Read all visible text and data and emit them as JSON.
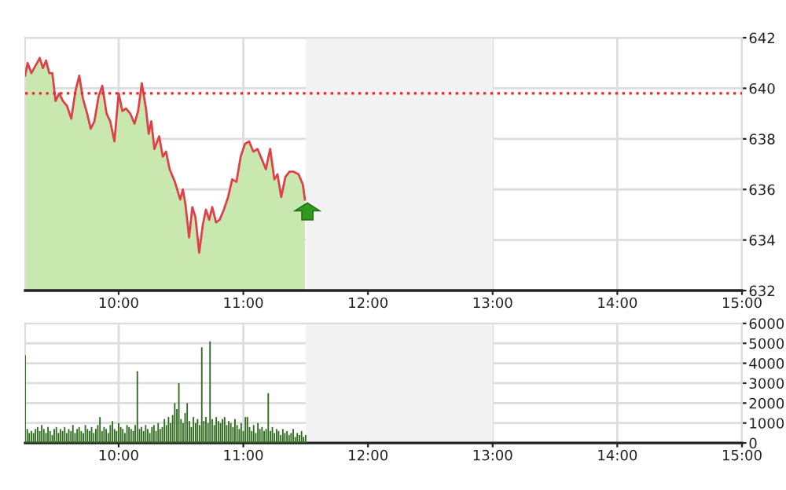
{
  "chart_data": [
    {
      "type": "area",
      "xlim": [
        9.25,
        15
      ],
      "xticks": [
        {
          "value": 10,
          "label": "10:00"
        },
        {
          "value": 11,
          "label": "11:00"
        },
        {
          "value": 12,
          "label": "12:00"
        },
        {
          "value": 13,
          "label": "13:00"
        },
        {
          "value": 14,
          "label": "14:00"
        },
        {
          "value": 15,
          "label": "15:00"
        }
      ],
      "ylim": [
        632,
        642
      ],
      "yticks": [
        632,
        634,
        636,
        638,
        640,
        642
      ],
      "grid": true,
      "legend": false,
      "bands": [
        {
          "axis": "x",
          "from": 11.5,
          "to": 13,
          "color": "#f2f2f2"
        }
      ],
      "ref_lines": [
        {
          "axis": "y",
          "value": 639.8,
          "color": "#e8262b",
          "line_style": "dotted"
        }
      ],
      "series": [
        {
          "type": "area",
          "color": "#c8e8b0",
          "x": [
            9.25,
            9.27,
            9.3,
            9.367,
            9.392,
            9.418,
            9.443,
            9.468,
            9.494,
            9.523,
            9.553,
            9.586,
            9.62,
            9.654,
            9.684,
            9.713,
            9.747,
            9.776,
            9.806,
            9.84,
            9.869,
            9.903,
            9.932,
            9.966,
            10.0,
            10.03,
            10.059,
            10.093,
            10.127,
            10.156,
            10.186,
            10.219,
            10.241,
            10.262,
            10.287,
            10.325,
            10.354,
            10.38,
            10.409,
            10.451,
            10.494,
            10.515,
            10.536,
            10.565,
            10.591,
            10.616,
            10.646,
            10.675,
            10.7,
            10.726,
            10.751,
            10.781,
            10.81,
            10.844,
            10.878,
            10.911,
            10.945,
            10.979,
            11.013,
            11.046,
            11.08,
            11.114,
            11.148,
            11.181,
            11.215,
            11.249,
            11.274,
            11.304,
            11.338,
            11.371,
            11.405,
            11.443,
            11.477,
            11.494
          ],
          "values": [
            640.5,
            641.0,
            640.6,
            641.2,
            640.8,
            641.1,
            640.6,
            640.6,
            639.5,
            639.8,
            639.5,
            639.3,
            638.8,
            639.9,
            640.5,
            639.6,
            639.0,
            638.4,
            638.7,
            639.7,
            640.1,
            639.0,
            638.7,
            637.9,
            639.8,
            639.1,
            639.2,
            639.0,
            638.6,
            639.1,
            640.2,
            639.2,
            638.2,
            638.7,
            637.6,
            638.1,
            637.3,
            637.5,
            636.8,
            636.3,
            635.6,
            636.0,
            635.4,
            634.1,
            635.3,
            634.9,
            633.5,
            634.6,
            635.2,
            634.8,
            635.3,
            634.7,
            634.8,
            635.2,
            635.7,
            636.4,
            636.3,
            637.3,
            637.8,
            637.9,
            637.5,
            637.6,
            637.2,
            636.8,
            637.6,
            636.4,
            636.6,
            635.7,
            636.5,
            636.7,
            636.7,
            636.6,
            636.2,
            635.6
          ]
        },
        {
          "type": "line",
          "color": "#e0404a",
          "x": [
            9.25,
            9.27,
            9.3,
            9.367,
            9.392,
            9.418,
            9.443,
            9.468,
            9.494,
            9.523,
            9.553,
            9.586,
            9.62,
            9.654,
            9.684,
            9.713,
            9.747,
            9.776,
            9.806,
            9.84,
            9.869,
            9.903,
            9.932,
            9.966,
            10.0,
            10.03,
            10.059,
            10.093,
            10.127,
            10.156,
            10.186,
            10.219,
            10.241,
            10.262,
            10.287,
            10.325,
            10.354,
            10.38,
            10.409,
            10.451,
            10.494,
            10.515,
            10.536,
            10.565,
            10.591,
            10.616,
            10.646,
            10.675,
            10.7,
            10.726,
            10.751,
            10.781,
            10.81,
            10.844,
            10.878,
            10.911,
            10.945,
            10.979,
            11.013,
            11.046,
            11.08,
            11.114,
            11.148,
            11.181,
            11.215,
            11.249,
            11.274,
            11.304,
            11.338,
            11.371,
            11.405,
            11.443,
            11.477,
            11.494
          ],
          "values": [
            640.5,
            641.0,
            640.6,
            641.2,
            640.8,
            641.1,
            640.6,
            640.6,
            639.5,
            639.8,
            639.5,
            639.3,
            638.8,
            639.9,
            640.5,
            639.6,
            639.0,
            638.4,
            638.7,
            639.7,
            640.1,
            639.0,
            638.7,
            637.9,
            639.8,
            639.1,
            639.2,
            639.0,
            638.6,
            639.1,
            640.2,
            639.2,
            638.2,
            638.7,
            637.6,
            638.1,
            637.3,
            637.5,
            636.8,
            636.3,
            635.6,
            636.0,
            635.4,
            634.1,
            635.3,
            634.9,
            633.5,
            634.6,
            635.2,
            634.8,
            635.3,
            634.7,
            634.8,
            635.2,
            635.7,
            636.4,
            636.3,
            637.3,
            637.8,
            637.9,
            637.5,
            637.6,
            637.2,
            636.8,
            637.6,
            636.4,
            636.6,
            635.7,
            636.5,
            636.7,
            636.7,
            636.6,
            636.2,
            635.6
          ]
        }
      ]
    },
    {
      "type": "bar",
      "xlim": [
        9.25,
        15
      ],
      "xticks": [
        {
          "value": 10,
          "label": "10:00"
        },
        {
          "value": 11,
          "label": "11:00"
        },
        {
          "value": 12,
          "label": "12:00"
        },
        {
          "value": 13,
          "label": "13:00"
        },
        {
          "value": 14,
          "label": "14:00"
        },
        {
          "value": 15,
          "label": "15:00"
        }
      ],
      "ylim": [
        0,
        6000
      ],
      "yticks": [
        0,
        1000,
        2000,
        3000,
        4000,
        5000,
        6000
      ],
      "grid": true,
      "legend": false,
      "bands": [
        {
          "axis": "x",
          "from": 11.5,
          "to": 13,
          "color": "#f2f2f2"
        }
      ],
      "series": [
        {
          "color": "#2e6b1e",
          "x": [
            9.25,
            9.267,
            9.283,
            9.3,
            9.317,
            9.333,
            9.35,
            9.367,
            9.383,
            9.4,
            9.417,
            9.433,
            9.45,
            9.467,
            9.483,
            9.5,
            9.517,
            9.533,
            9.55,
            9.567,
            9.583,
            9.6,
            9.617,
            9.633,
            9.65,
            9.667,
            9.683,
            9.7,
            9.717,
            9.733,
            9.75,
            9.767,
            9.783,
            9.8,
            9.817,
            9.833,
            9.85,
            9.867,
            9.883,
            9.9,
            9.917,
            9.933,
            9.95,
            9.967,
            9.983,
            10.0,
            10.017,
            10.033,
            10.05,
            10.067,
            10.083,
            10.1,
            10.117,
            10.133,
            10.15,
            10.167,
            10.183,
            10.2,
            10.217,
            10.233,
            10.25,
            10.267,
            10.283,
            10.3,
            10.317,
            10.333,
            10.35,
            10.367,
            10.383,
            10.4,
            10.417,
            10.433,
            10.45,
            10.467,
            10.483,
            10.5,
            10.517,
            10.533,
            10.55,
            10.567,
            10.583,
            10.6,
            10.617,
            10.633,
            10.65,
            10.667,
            10.683,
            10.7,
            10.717,
            10.733,
            10.75,
            10.767,
            10.783,
            10.8,
            10.817,
            10.833,
            10.85,
            10.867,
            10.883,
            10.9,
            10.917,
            10.933,
            10.95,
            10.967,
            10.983,
            11.0,
            11.017,
            11.033,
            11.05,
            11.067,
            11.083,
            11.1,
            11.117,
            11.133,
            11.15,
            11.167,
            11.183,
            11.2,
            11.217,
            11.233,
            11.25,
            11.267,
            11.283,
            11.3,
            11.317,
            11.333,
            11.35,
            11.367,
            11.383,
            11.4,
            11.417,
            11.433,
            11.45,
            11.467,
            11.483,
            11.5
          ],
          "values": [
            4400,
            700,
            500,
            600,
            500,
            700,
            800,
            600,
            900,
            700,
            500,
            800,
            600,
            400,
            700,
            800,
            500,
            700,
            600,
            800,
            500,
            700,
            600,
            900,
            500,
            700,
            800,
            600,
            500,
            900,
            700,
            600,
            800,
            500,
            700,
            900,
            1300,
            600,
            800,
            700,
            500,
            900,
            1100,
            700,
            600,
            1000,
            800,
            700,
            500,
            900,
            800,
            700,
            600,
            900,
            3600,
            700,
            800,
            600,
            900,
            700,
            500,
            800,
            900,
            600,
            1000,
            700,
            800,
            1200,
            900,
            1300,
            1000,
            1400,
            2000,
            1700,
            3000,
            1200,
            1000,
            1500,
            2000,
            1100,
            800,
            1300,
            1000,
            1200,
            900,
            4800,
            1100,
            1300,
            1000,
            5100,
            1200,
            900,
            1300,
            1100,
            1000,
            1200,
            1300,
            900,
            1100,
            1000,
            800,
            1200,
            900,
            700,
            1000,
            600,
            1300,
            1300,
            800,
            600,
            900,
            500,
            1000,
            700,
            800,
            600,
            700,
            2500,
            600,
            800,
            500,
            700,
            600,
            400,
            700,
            500,
            600,
            400,
            500,
            700,
            300,
            500,
            400,
            600,
            300,
            400
          ]
        }
      ]
    }
  ]
}
